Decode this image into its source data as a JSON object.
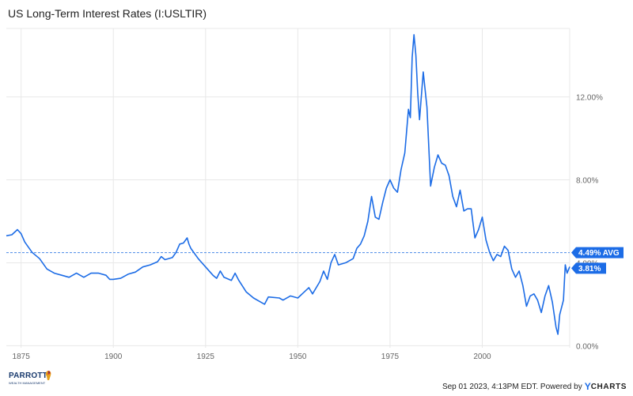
{
  "colors": {
    "series": "#1c6ce6",
    "avg_line": "#4a8ae8",
    "badge_bg": "#1c6ce6",
    "badge_text": "#ffffff",
    "grid": "#e8e8e8"
  },
  "chart_data": {
    "type": "line",
    "title": "US Long-Term Interest Rates (I:USLTIR)",
    "xlabel": "",
    "ylabel": "",
    "x_ticks": [
      "1875",
      "1900",
      "1925",
      "1950",
      "1975",
      "2000"
    ],
    "y_ticks": [
      "0.00%",
      "4.00%",
      "8.00%",
      "12.00%"
    ],
    "xlim": [
      1871,
      2023.7
    ],
    "ylim": [
      -0.1,
      15.3
    ],
    "grid": true,
    "y_axis_position": "right",
    "series": [
      {
        "x": [
          1871,
          1872.5,
          1874,
          1875,
          1876,
          1878,
          1880,
          1882,
          1884,
          1886,
          1888,
          1890,
          1892,
          1894,
          1896,
          1898,
          1899,
          1900,
          1902,
          1904,
          1906,
          1908,
          1910,
          1912,
          1913,
          1914,
          1916,
          1917,
          1918,
          1919,
          1920,
          1920.5,
          1921,
          1923,
          1925,
          1927,
          1928,
          1929,
          1930,
          1932,
          1933,
          1934,
          1936,
          1938,
          1940,
          1941,
          1942,
          1945,
          1946,
          1948,
          1950,
          1953,
          1954,
          1956,
          1957,
          1958,
          1959,
          1960,
          1961,
          1963,
          1965,
          1966,
          1967,
          1968,
          1969,
          1970,
          1971,
          1972,
          1973,
          1974,
          1975,
          1976,
          1977,
          1978,
          1979,
          1980,
          1980.5,
          1981,
          1981.5,
          1982,
          1982.5,
          1983,
          1984,
          1985,
          1986,
          1987,
          1988,
          1989,
          1990,
          1991,
          1992,
          1993,
          1994,
          1995,
          1996,
          1997,
          1998,
          1999,
          2000,
          2001,
          2002,
          2003,
          2004,
          2005,
          2006,
          2007,
          2008,
          2009,
          2010,
          2011,
          2012,
          2013,
          2014,
          2015,
          2016,
          2017,
          2018,
          2019,
          2020,
          2020.5,
          2021,
          2022,
          2022.5,
          2023,
          2023.7
        ],
        "values": [
          5.3,
          5.35,
          5.6,
          5.4,
          5.0,
          4.5,
          4.2,
          3.7,
          3.5,
          3.4,
          3.3,
          3.5,
          3.3,
          3.5,
          3.5,
          3.4,
          3.2,
          3.2,
          3.25,
          3.45,
          3.55,
          3.8,
          3.9,
          4.05,
          4.3,
          4.15,
          4.25,
          4.5,
          4.9,
          4.95,
          5.2,
          4.9,
          4.7,
          4.2,
          3.8,
          3.4,
          3.25,
          3.6,
          3.3,
          3.15,
          3.5,
          3.15,
          2.6,
          2.3,
          2.1,
          2.0,
          2.35,
          2.3,
          2.2,
          2.4,
          2.3,
          2.8,
          2.5,
          3.1,
          3.6,
          3.2,
          4.0,
          4.4,
          3.9,
          4.0,
          4.2,
          4.7,
          4.9,
          5.3,
          6.0,
          7.2,
          6.2,
          6.1,
          6.9,
          7.6,
          8.0,
          7.6,
          7.4,
          8.5,
          9.3,
          11.4,
          11.0,
          13.9,
          15.0,
          14.0,
          12.2,
          10.9,
          13.2,
          11.5,
          7.7,
          8.6,
          9.2,
          8.8,
          8.7,
          8.2,
          7.2,
          6.7,
          7.5,
          6.5,
          6.6,
          6.6,
          5.2,
          5.6,
          6.2,
          5.1,
          4.5,
          4.1,
          4.4,
          4.3,
          4.8,
          4.6,
          3.7,
          3.3,
          3.6,
          2.9,
          1.9,
          2.4,
          2.5,
          2.2,
          1.6,
          2.4,
          2.9,
          2.1,
          0.9,
          0.55,
          1.5,
          2.2,
          3.9,
          3.5,
          3.81
        ]
      }
    ],
    "reference_lines": [
      {
        "y": 4.49,
        "label": "4.49% AVG"
      }
    ],
    "current_value_label": "3.81%"
  },
  "footer": {
    "credit": "Sep 01 2023, 4:13PM EDT. Powered by",
    "brand_y": "Y",
    "brand_rest": "CHARTS",
    "logo_name": "PARROTT",
    "logo_sub": "WEALTH MANAGEMENT"
  }
}
